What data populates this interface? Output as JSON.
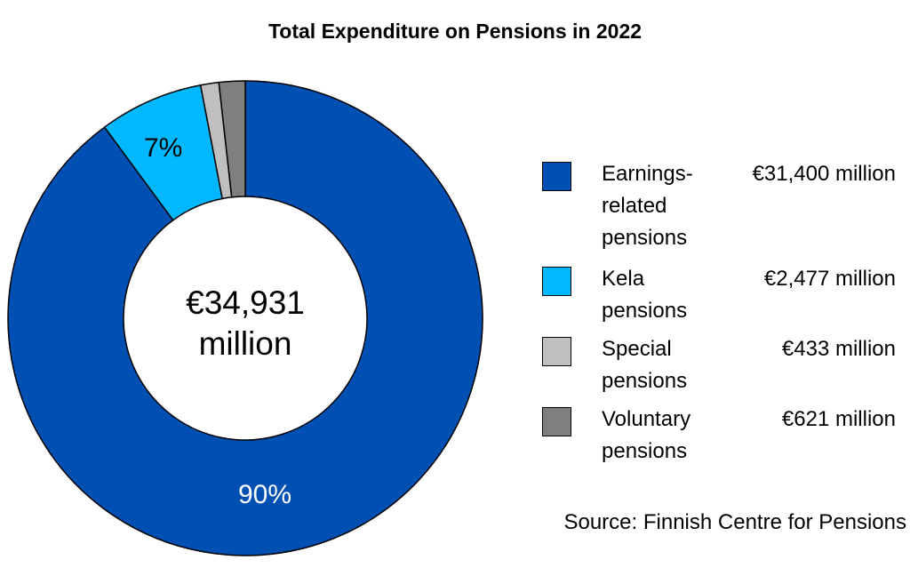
{
  "chart_data": {
    "type": "pie",
    "title": "Total Expenditure on Pensions in 2022",
    "center_label": "€34,931 million",
    "center_lines": [
      "€34,931",
      "million"
    ],
    "series": [
      {
        "name": "Earnings-related pensions",
        "label_lines": [
          "Earnings-",
          "related",
          "pensions"
        ],
        "value": 31400,
        "value_label": "€31,400 million",
        "percent_label": "90%",
        "color": "#0050B4"
      },
      {
        "name": "Kela pensions",
        "label_lines": [
          "Kela",
          "pensions"
        ],
        "value": 2477,
        "value_label": "€2,477 million",
        "percent_label": "7%",
        "color": "#00B8FF"
      },
      {
        "name": "Special pensions",
        "label_lines": [
          "Special",
          "pensions"
        ],
        "value": 433,
        "value_label": "€433 million",
        "percent_label": "",
        "color": "#BFBFBF"
      },
      {
        "name": "Voluntary pensions",
        "label_lines": [
          "Voluntary",
          "pensions"
        ],
        "value": 621,
        "value_label": "€621 million",
        "percent_label": "",
        "color": "#7F7F7F"
      }
    ],
    "legend_position": "right",
    "source": "Source: Finnish Centre for Pensions"
  }
}
